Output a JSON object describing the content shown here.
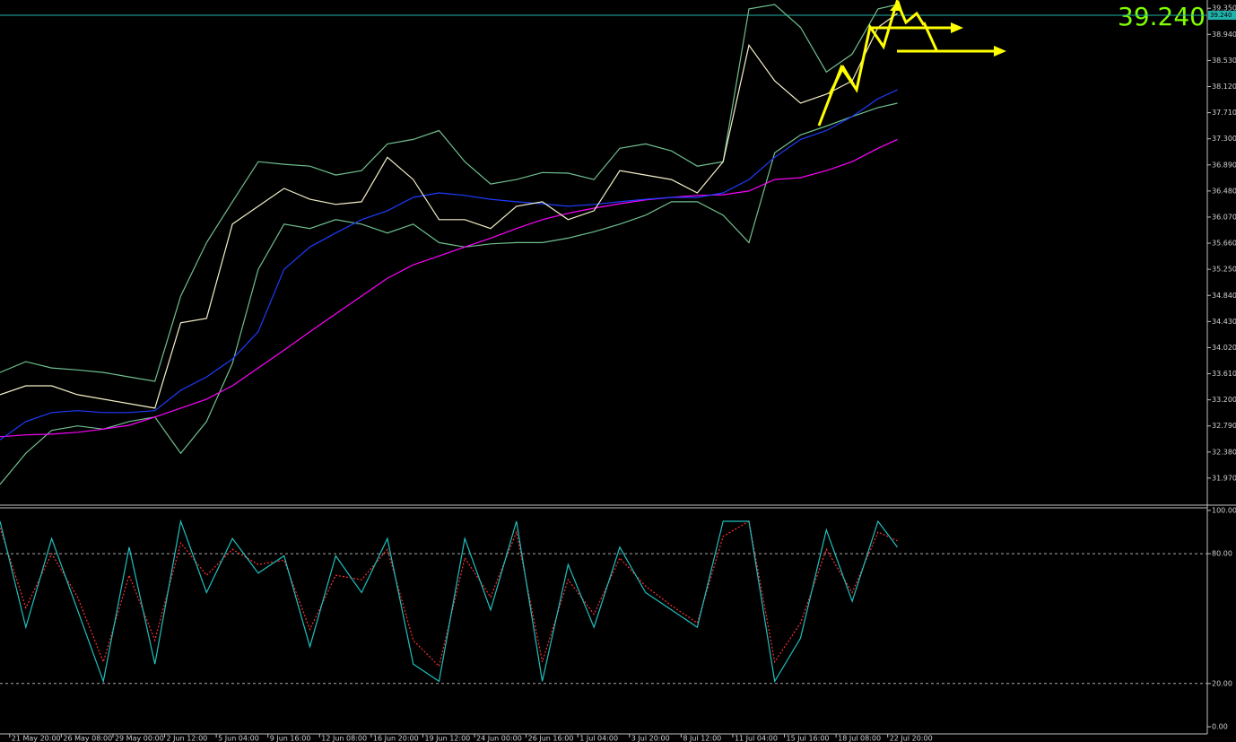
{
  "chart_data": [
    {
      "type": "line",
      "x": [
        0,
        8,
        16,
        24,
        32,
        40,
        48,
        56,
        64,
        72,
        80,
        88,
        96,
        104,
        112,
        120,
        128,
        136,
        144,
        152,
        160,
        168,
        176,
        184,
        192,
        200,
        208,
        216,
        224,
        232,
        240,
        248,
        256,
        264,
        272,
        278
      ],
      "xlim": [
        0,
        374
      ],
      "ylim": [
        31.56,
        39.48
      ],
      "yticks": [
        {
          "value": 39.35,
          "label": "39.350"
        },
        {
          "value": 38.94,
          "label": "38.940"
        },
        {
          "value": 38.53,
          "label": "38.530"
        },
        {
          "value": 38.12,
          "label": "38.120"
        },
        {
          "value": 37.71,
          "label": "37.710"
        },
        {
          "value": 37.3,
          "label": "37.300"
        },
        {
          "value": 36.89,
          "label": "36.890"
        },
        {
          "value": 36.48,
          "label": "36.480"
        },
        {
          "value": 36.07,
          "label": "36.070"
        },
        {
          "value": 35.66,
          "label": "35.660"
        },
        {
          "value": 35.25,
          "label": "35.250"
        },
        {
          "value": 34.84,
          "label": "34.840"
        },
        {
          "value": 34.43,
          "label": "34.430"
        },
        {
          "value": 34.02,
          "label": "34.020"
        },
        {
          "value": 33.61,
          "label": "33.610"
        },
        {
          "value": 33.2,
          "label": "33.200"
        },
        {
          "value": 32.79,
          "label": "32.790"
        },
        {
          "value": 32.38,
          "label": "32.380"
        },
        {
          "value": 31.97,
          "label": "31.970"
        }
      ],
      "current_price": {
        "value": 39.24,
        "label": "39.240"
      },
      "series": [
        {
          "color": "#6fbf8f",
          "values": [
            33.63,
            33.8,
            33.7,
            33.67,
            33.63,
            33.56,
            33.49,
            34.83,
            35.67,
            36.31,
            36.94,
            36.9,
            36.87,
            36.73,
            36.8,
            37.22,
            37.29,
            37.43,
            36.94,
            36.59,
            36.66,
            36.77,
            36.76,
            36.66,
            37.15,
            37.22,
            37.11,
            36.87,
            36.94,
            39.34,
            39.41,
            39.05,
            38.35,
            38.63,
            39.34,
            39.41
          ]
        },
        {
          "color": "#6fbf8f",
          "values": [
            31.87,
            32.36,
            32.72,
            32.79,
            32.74,
            32.86,
            32.93,
            32.36,
            32.86,
            33.77,
            35.25,
            35.96,
            35.89,
            36.03,
            35.96,
            35.82,
            35.96,
            35.67,
            35.6,
            35.65,
            35.67,
            35.67,
            35.74,
            35.84,
            35.96,
            36.1,
            36.31,
            36.31,
            36.1,
            35.67,
            37.08,
            37.36,
            37.5,
            37.65,
            37.79,
            37.86
          ]
        },
        {
          "color": "#ff00ff",
          "values": [
            32.62,
            32.65,
            32.66,
            32.69,
            32.74,
            32.8,
            32.93,
            33.07,
            33.21,
            33.42,
            33.7,
            33.98,
            34.27,
            34.55,
            34.83,
            35.11,
            35.32,
            35.46,
            35.6,
            35.74,
            35.89,
            36.03,
            36.13,
            36.21,
            36.28,
            36.34,
            36.38,
            36.41,
            36.42,
            36.48,
            36.66,
            36.69,
            36.8,
            36.94,
            37.15,
            37.29
          ]
        },
        {
          "color": "#1e3cff",
          "values": [
            32.57,
            32.86,
            33.0,
            33.03,
            33.0,
            33.0,
            33.03,
            33.35,
            33.56,
            33.84,
            34.27,
            35.25,
            35.6,
            35.82,
            36.03,
            36.17,
            36.38,
            36.45,
            36.41,
            36.35,
            36.31,
            36.28,
            36.24,
            36.27,
            36.31,
            36.35,
            36.38,
            36.38,
            36.45,
            36.66,
            37.01,
            37.29,
            37.43,
            37.65,
            37.93,
            38.07
          ]
        },
        {
          "color": "#f5f0c8",
          "values": [
            33.28,
            33.42,
            33.42,
            33.28,
            33.21,
            33.14,
            33.07,
            34.41,
            34.48,
            35.96,
            36.24,
            36.52,
            36.35,
            36.27,
            36.31,
            37.01,
            36.66,
            36.03,
            36.03,
            35.89,
            36.24,
            36.31,
            36.03,
            36.17,
            36.8,
            36.73,
            36.66,
            36.45,
            36.94,
            38.77,
            38.21,
            37.86,
            38.0,
            38.21,
            39.05,
            39.27
          ]
        }
      ]
    },
    {
      "type": "line",
      "x": [
        0,
        8,
        16,
        24,
        32,
        40,
        48,
        56,
        64,
        72,
        80,
        88,
        96,
        104,
        112,
        120,
        128,
        136,
        144,
        152,
        160,
        168,
        176,
        184,
        192,
        200,
        208,
        216,
        224,
        232,
        240,
        248,
        256,
        264,
        272,
        278
      ],
      "xlim": [
        0,
        374
      ],
      "ylim": [
        -3.3,
        101.2
      ],
      "yticks": [
        {
          "value": 100,
          "label": "100.00"
        },
        {
          "value": 80,
          "label": "80.00"
        },
        {
          "value": 20,
          "label": "20.00"
        },
        {
          "value": 0,
          "label": "0.00"
        }
      ],
      "level_lines": [
        80,
        20
      ],
      "xticks": [
        {
          "value": 3,
          "label": "21 May 20:00"
        },
        {
          "value": 19,
          "label": "26 May 08:00"
        },
        {
          "value": 35,
          "label": "29 May 00:00"
        },
        {
          "value": 51,
          "label": "2 Jun 12:00"
        },
        {
          "value": 67,
          "label": "5 Jun 04:00"
        },
        {
          "value": 83,
          "label": "9 Jun 16:00"
        },
        {
          "value": 99,
          "label": "12 Jun 08:00"
        },
        {
          "value": 115,
          "label": "16 Jun 20:00"
        },
        {
          "value": 131,
          "label": "19 Jun 12:00"
        },
        {
          "value": 147,
          "label": "24 Jun 00:00"
        },
        {
          "value": 163,
          "label": "26 Jun 16:00"
        },
        {
          "value": 179,
          "label": "1 Jul 04:00"
        },
        {
          "value": 195,
          "label": "3 Jul 20:00"
        },
        {
          "value": 211,
          "label": "8 Jul 12:00"
        },
        {
          "value": 227,
          "label": "11 Jul 04:00"
        },
        {
          "value": 243,
          "label": "15 Jul 16:00"
        },
        {
          "value": 259,
          "label": "18 Jul 08:00"
        },
        {
          "value": 275,
          "label": "22 Jul 20:00"
        }
      ],
      "series": [
        {
          "color": "#ff3030",
          "style": "dashed",
          "values": [
            92,
            55,
            80,
            60,
            30,
            70,
            40,
            85,
            70,
            82,
            75,
            77,
            45,
            70,
            68,
            82,
            40,
            28,
            78,
            60,
            90,
            30,
            68,
            52,
            78,
            65,
            56,
            48,
            88,
            95,
            30,
            48,
            82,
            62,
            90,
            86
          ]
        },
        {
          "color": "#20c0c0",
          "values": [
            95,
            46,
            87,
            54,
            21,
            83,
            29,
            95,
            62,
            87,
            71,
            79,
            37,
            79,
            62,
            87,
            29,
            21,
            87,
            54,
            95,
            21,
            75,
            46,
            83,
            62,
            54,
            46,
            95,
            95,
            21,
            41,
            91,
            58,
            95,
            83
          ]
        }
      ]
    }
  ]
}
